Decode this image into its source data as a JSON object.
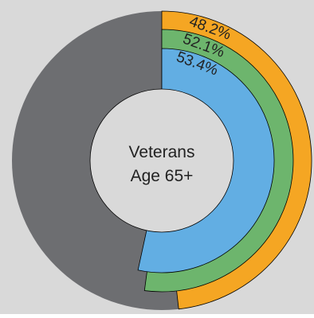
{
  "chart_data": {
    "type": "pie",
    "center_label_lines": [
      "Veterans",
      "Age 65+"
    ],
    "series": [
      {
        "label": "48.2%",
        "value": 48.2,
        "color": "#f5a623"
      },
      {
        "label": "52.1%",
        "value": 52.1,
        "color": "#6db56d"
      },
      {
        "label": "53.4%",
        "value": 53.4,
        "color": "#62aee3"
      }
    ],
    "remainder_color": "#6d6e71",
    "background_color": "#d9d9d9",
    "center_color": "#d9d9d9"
  }
}
